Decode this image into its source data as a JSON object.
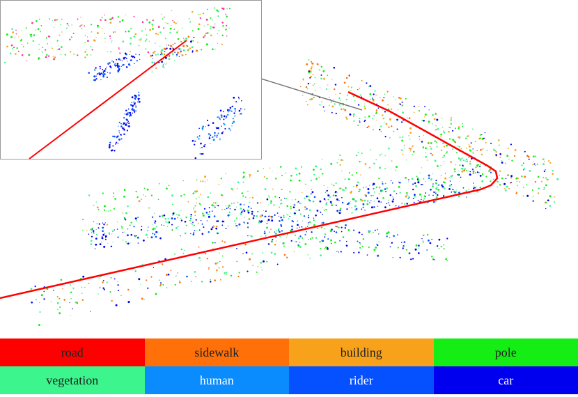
{
  "legend": {
    "items": [
      {
        "label": "road",
        "color": "#ff0000",
        "text_color": "#222222"
      },
      {
        "label": "sidewalk",
        "color": "#ff7008",
        "text_color": "#222222"
      },
      {
        "label": "building",
        "color": "#f7a21a",
        "text_color": "#222222"
      },
      {
        "label": "pole",
        "color": "#14ee14",
        "text_color": "#222222"
      },
      {
        "label": "vegetation",
        "color": "#3cf58c",
        "text_color": "#222222"
      },
      {
        "label": "human",
        "color": "#0a8cff",
        "text_color": "#ffffff"
      },
      {
        "label": "rider",
        "color": "#0550ff",
        "text_color": "#ffffff"
      },
      {
        "label": "car",
        "color": "#0000ee",
        "text_color": "#ffffff"
      }
    ]
  }
}
